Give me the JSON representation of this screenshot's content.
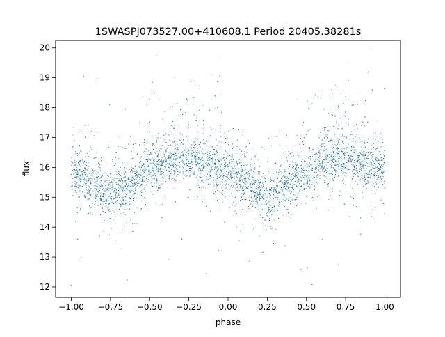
{
  "chart_data": {
    "type": "scatter",
    "title": "1SWASPJ073527.00+410608.1 Period 20405.38281s",
    "xlabel": "phase",
    "ylabel": "flux",
    "xlim": [
      -1.1,
      1.1
    ],
    "ylim": [
      11.65,
      20.25
    ],
    "xticks": [
      -1.0,
      -0.75,
      -0.5,
      -0.25,
      0.0,
      0.25,
      0.5,
      0.75,
      1.0
    ],
    "xtick_labels": [
      "−1.00",
      "−0.75",
      "−0.50",
      "−0.25",
      "0.00",
      "0.25",
      "0.50",
      "0.75",
      "1.00"
    ],
    "yticks": [
      12,
      13,
      14,
      15,
      16,
      17,
      18,
      19,
      20
    ],
    "ytick_labels": [
      "12",
      "13",
      "14",
      "15",
      "16",
      "17",
      "18",
      "19",
      "20"
    ],
    "grid": false,
    "marker_color": "#1f77b4",
    "series": [
      {
        "phase": [
          -1.0,
          -0.9,
          -0.8,
          -0.75,
          -0.7,
          -0.6,
          -0.5,
          -0.4,
          -0.3,
          -0.25,
          -0.2,
          -0.1,
          0.0,
          0.1,
          0.2,
          0.25,
          0.3,
          0.4,
          0.5,
          0.6,
          0.7,
          0.75,
          0.8,
          0.9,
          1.0
        ],
        "median_flux": [
          15.9,
          15.5,
          15.1,
          15.0,
          15.1,
          15.5,
          15.8,
          16.1,
          16.3,
          16.3,
          16.2,
          16.0,
          15.8,
          15.5,
          15.1,
          15.0,
          15.1,
          15.5,
          15.8,
          16.1,
          16.3,
          16.3,
          16.2,
          16.0,
          15.9
        ],
        "scatter_sigma": 0.35,
        "upper_envelope_flux": [
          17.6,
          17.0,
          16.6,
          16.5,
          16.7,
          17.2,
          17.6,
          18.0,
          18.3,
          18.4,
          18.2,
          17.8,
          17.4,
          17.0,
          16.6,
          16.5,
          16.6,
          17.1,
          17.5,
          17.9,
          18.2,
          18.3,
          18.1,
          17.7,
          17.4
        ],
        "lower_envelope_flux": [
          14.9,
          14.6,
          14.2,
          14.1,
          14.3,
          14.7,
          15.0,
          15.3,
          15.5,
          15.5,
          15.4,
          15.2,
          15.0,
          14.7,
          14.2,
          14.1,
          14.3,
          14.7,
          15.0,
          15.3,
          15.5,
          15.5,
          15.4,
          15.2,
          15.0
        ],
        "flux_range": [
          12.0,
          20.0
        ]
      }
    ]
  }
}
